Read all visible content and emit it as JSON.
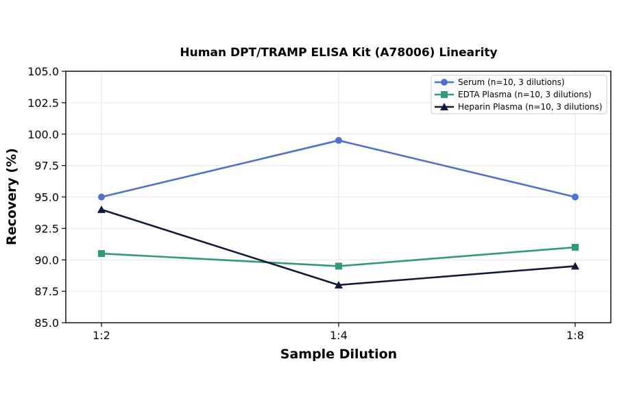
{
  "chart_data": {
    "type": "line",
    "title": "Human DPT/TRAMP ELISA Kit (A78006) Linearity",
    "xlabel": "Sample Dilution",
    "ylabel": "Recovery (%)",
    "categories": [
      "1:2",
      "1:4",
      "1:8"
    ],
    "ylim": [
      85.0,
      105.0
    ],
    "yticks": [
      "85.0",
      "87.5",
      "90.0",
      "92.5",
      "95.0",
      "97.5",
      "100.0",
      "102.5",
      "105.0"
    ],
    "grid": true,
    "legend_position": "top-right",
    "series": [
      {
        "name": "Serum (n=10, 3 dilutions)",
        "values": [
          95.0,
          99.5,
          95.0
        ],
        "color": "#4d6fd6",
        "marker": "circle"
      },
      {
        "name": "EDTA Plasma (n=10, 3 dilutions)",
        "values": [
          90.5,
          89.5,
          91.0
        ],
        "color": "#2a9c78",
        "marker": "square"
      },
      {
        "name": "Heparin Plasma (n=10, 3 dilutions)",
        "values": [
          94.0,
          88.0,
          89.5
        ],
        "color": "#111a3e",
        "marker": "triangle"
      }
    ]
  }
}
